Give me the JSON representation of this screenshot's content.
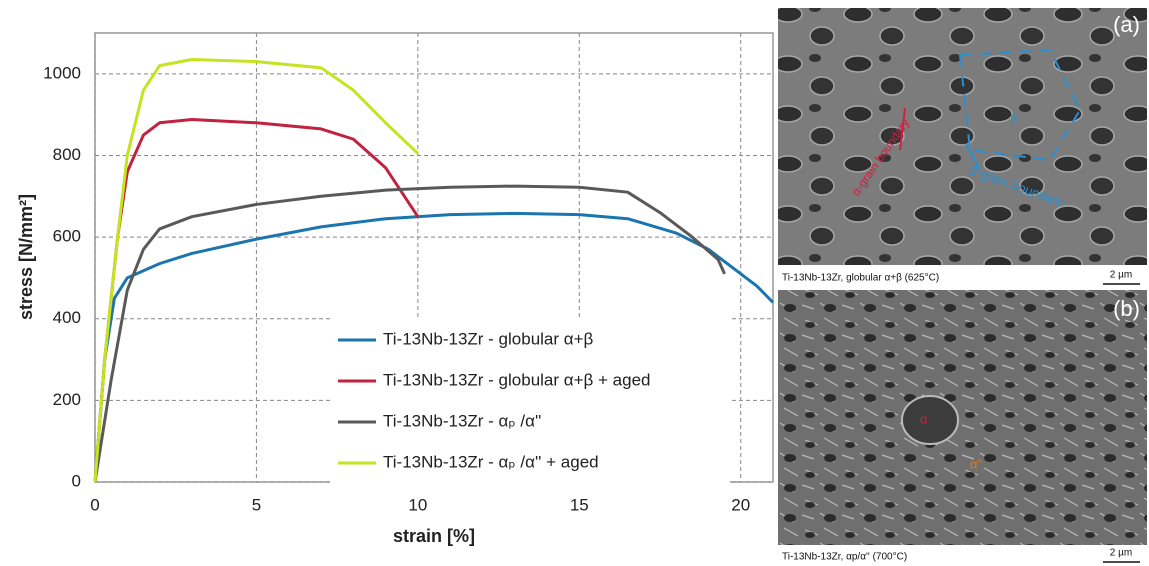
{
  "chart_data": {
    "type": "line",
    "x_label": "strain [%]",
    "y_label": "stress [N/mm²]",
    "xlim": [
      0,
      21
    ],
    "xticks": [
      0,
      5,
      10,
      15,
      20
    ],
    "ylim": [
      0,
      1100
    ],
    "yticks": [
      0,
      200,
      400,
      600,
      800,
      1000
    ],
    "grid": true,
    "legend": "lower right",
    "series": [
      {
        "name": "Ti-13Nb-13Zr - globular α+β",
        "color": "#1b75ae",
        "x": [
          0,
          0.3,
          0.6,
          1,
          2,
          3,
          5,
          7,
          9,
          11,
          13,
          15,
          16.5,
          18,
          19,
          20,
          20.5,
          21
        ],
        "values": [
          0,
          300,
          450,
          500,
          535,
          560,
          595,
          625,
          645,
          655,
          658,
          655,
          645,
          610,
          570,
          510,
          480,
          440
        ]
      },
      {
        "name": "Ti-13Nb-13Zr - globular α+β + aged",
        "color": "#c0223f",
        "x": [
          0,
          0.3,
          0.7,
          1,
          1.5,
          2,
          3,
          5,
          7,
          8,
          9,
          9.5,
          10
        ],
        "values": [
          0,
          300,
          600,
          760,
          850,
          880,
          888,
          880,
          865,
          840,
          770,
          710,
          650
        ]
      },
      {
        "name": "Ti-13Nb-13Zr - αₚ /α''",
        "color": "#595959",
        "x": [
          0,
          0.5,
          1,
          1.5,
          2,
          3,
          5,
          7,
          9,
          11,
          13,
          15,
          16.5,
          17.5,
          18.5,
          19.3,
          19.5
        ],
        "values": [
          0,
          250,
          470,
          570,
          620,
          650,
          680,
          700,
          715,
          722,
          725,
          722,
          710,
          660,
          600,
          545,
          510
        ]
      },
      {
        "name": "Ti-13Nb-13Zr - αₚ /α'' + aged",
        "color": "#c5e31f",
        "x": [
          0,
          0.3,
          0.7,
          1,
          1.5,
          2,
          3,
          5,
          7,
          8,
          9,
          10
        ],
        "values": [
          0,
          300,
          600,
          800,
          960,
          1020,
          1035,
          1030,
          1015,
          960,
          880,
          805
        ]
      }
    ]
  },
  "micrographs": [
    {
      "panel": "(a)",
      "labels": [
        "β",
        "α-grain boundary",
        "β-grain boundary"
      ],
      "caption": "Ti-13Nb-13Zr, globular α+β (625°C)",
      "scale": "2 µm"
    },
    {
      "panel": "(b)",
      "labels": [
        "α",
        "α''"
      ],
      "caption": "Ti-13Nb-13Zr, αp/α''  (700°C)",
      "scale": "2 µm"
    }
  ]
}
